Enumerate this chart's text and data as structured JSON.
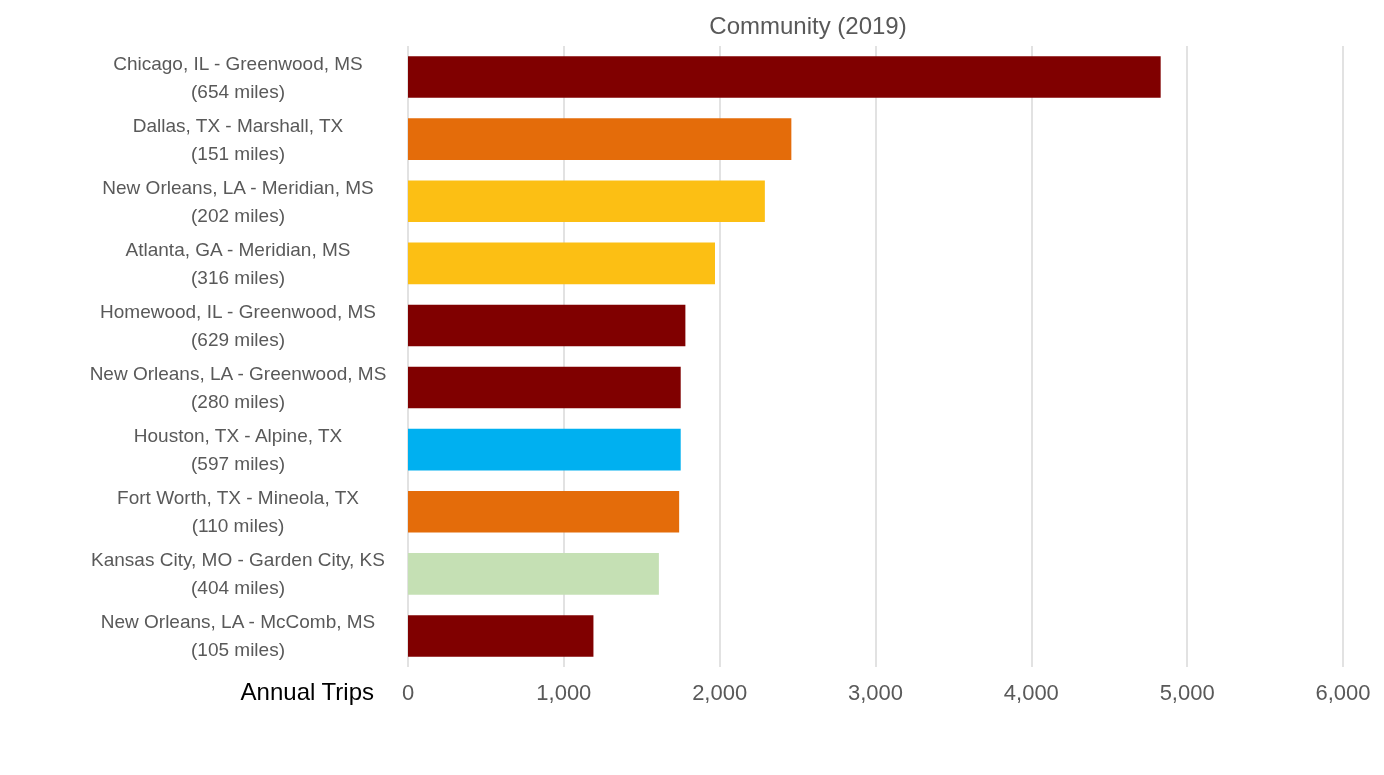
{
  "chart_data": {
    "type": "bar",
    "orientation": "horizontal",
    "title": "Community (2019)",
    "xlabel": "Annual Trips",
    "categories": [
      "Chicago, IL - Greenwood, MS\n(654 miles)",
      "Dallas, TX - Marshall, TX\n(151 miles)",
      "New Orleans, LA - Meridian, MS\n(202 miles)",
      "Atlanta, GA - Meridian, MS\n(316 miles)",
      "Homewood, IL - Greenwood, MS\n(629 miles)",
      "New Orleans, LA - Greenwood, MS\n(280 miles)",
      "Houston, TX - Alpine, TX\n(597 miles)",
      "Fort Worth, TX - Mineola, TX\n(110 miles)",
      "Kansas City, MO - Garden City, KS\n(404 miles)",
      "New Orleans, LA - McComb, MS\n(105 miles)"
    ],
    "values": [
      4830,
      2460,
      2290,
      1970,
      1780,
      1750,
      1750,
      1740,
      1610,
      1190
    ],
    "colors": [
      "#800000",
      "#e46c0a",
      "#fcbf14",
      "#fcbf14",
      "#800000",
      "#800000",
      "#00b0f0",
      "#e46c0a",
      "#c5e0b4",
      "#800000"
    ],
    "xlim": [
      0,
      6000
    ],
    "xticks": [
      0,
      {
        "value": 1000,
        "label": "1,000"
      },
      {
        "value": 2000,
        "label": "2,000"
      },
      {
        "value": 3000,
        "label": "3,000"
      },
      {
        "value": 4000,
        "label": "4,000"
      },
      {
        "value": 5000,
        "label": "5,000"
      },
      {
        "value": 6000,
        "label": "6,000"
      }
    ],
    "grid": "x"
  }
}
